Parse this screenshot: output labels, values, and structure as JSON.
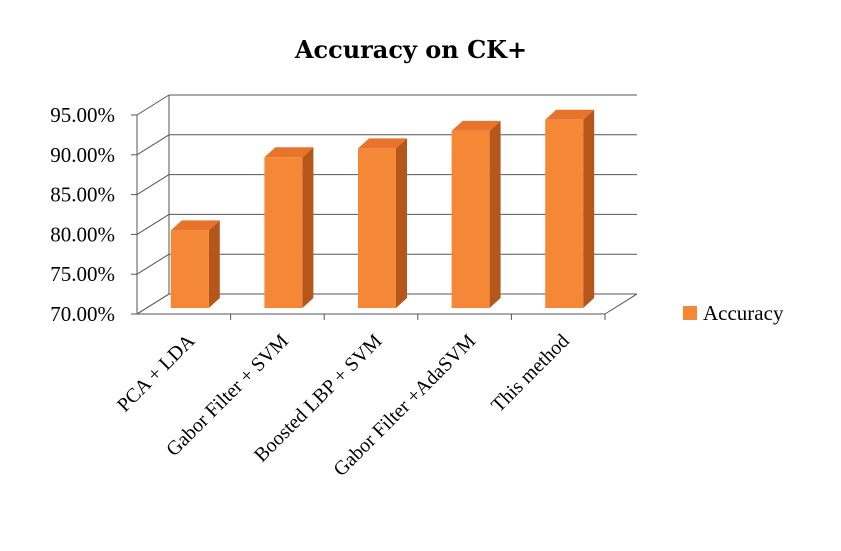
{
  "chart_data": {
    "type": "bar",
    "title": "Accuracy on CK+",
    "xlabel": "",
    "ylabel": "",
    "categories": [
      "PCA + LDA",
      "Gabor Filter + SVM",
      "Boosted LBP + SVM",
      "Gabor Filter +AdaSVM",
      "This method"
    ],
    "series": [
      {
        "name": "Accuracy",
        "values": [
          80.5,
          89.7,
          90.8,
          93.0,
          94.4
        ],
        "color": "#F58837",
        "side_color": "#B5561B",
        "top_color": "#E7742A"
      }
    ],
    "ylim": [
      70,
      95
    ],
    "yticks": [
      "70.00%",
      "75.00%",
      "80.00%",
      "85.00%",
      "90.00%",
      "95.00%"
    ],
    "ytick_values": [
      70,
      75,
      80,
      85,
      90,
      95
    ],
    "grid": true,
    "legend": "right",
    "three_d": true
  }
}
